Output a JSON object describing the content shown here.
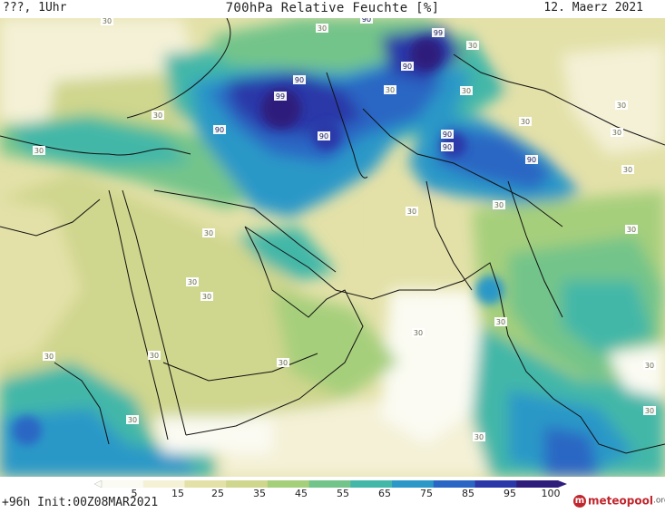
{
  "header": {
    "run_label": "???, 1Uhr",
    "title": "700hPa Relative Feuchte [%]",
    "valid_date": "12. Maerz 2021"
  },
  "footer": {
    "init_label": "+96h Init:00Z08MAR2021"
  },
  "legend": {
    "ticks": [
      "5",
      "15",
      "25",
      "35",
      "45",
      "55",
      "65",
      "75",
      "85",
      "95",
      "100"
    ],
    "colors": [
      "#fbfbf3",
      "#f4f1d7",
      "#e3e1a8",
      "#cfd68d",
      "#a6cf7b",
      "#73c48a",
      "#43b7a8",
      "#2b98c7",
      "#2a66c4",
      "#2a38a8",
      "#2f1d7c"
    ]
  },
  "logo": {
    "badge": "m",
    "main": "meteopool",
    "tld": ".org"
  },
  "contour_labels": [
    "99",
    "90",
    "90",
    "99",
    "90",
    "90",
    "90",
    "90",
    "90",
    "90",
    "30",
    "30",
    "30",
    "30",
    "30",
    "30",
    "30",
    "30",
    "30",
    "30",
    "30",
    "30",
    "30",
    "30",
    "30",
    "30",
    "30",
    "30",
    "30",
    "30",
    "30",
    "30",
    "30",
    "30",
    "30",
    "30"
  ]
}
